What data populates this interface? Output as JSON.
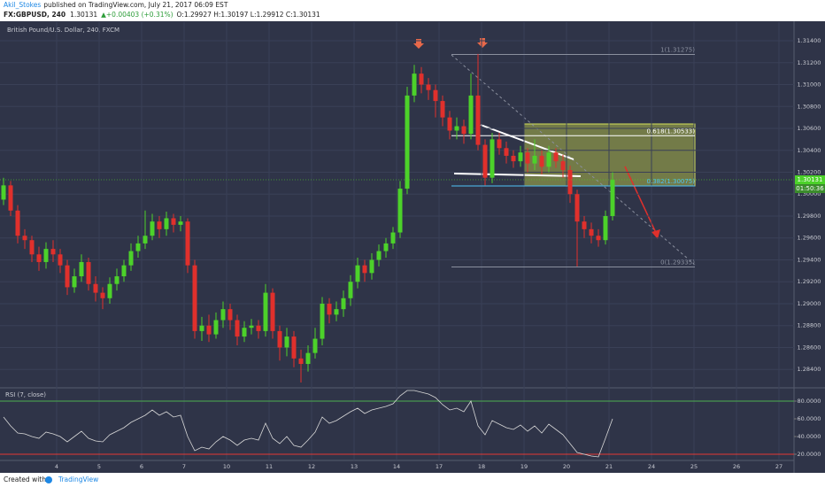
{
  "header": {
    "author": "Akil_Stokes",
    "published": "published on TradingView.com, July 21, 2017 06:09 EST",
    "symbol": "FX:GBPUSD, 240",
    "quote": "1.30131",
    "change": "▲+0.00403 (+0.31%)",
    "ohlc": "O:1.29927 H:1.30197 L:1.29912 C:1.30131"
  },
  "footer": {
    "created": "Created with",
    "brand": "TradingView"
  },
  "chart_data": [
    {
      "type": "candlestick",
      "title": "British Pound/U.S. Dollar, 240, FXCM",
      "up_color": "#4cd22a",
      "down_color": "#e0302c",
      "grid": true,
      "categories": [
        null,
        null,
        null,
        null,
        null,
        null,
        null,
        null,
        "4",
        null,
        null,
        null,
        null,
        null,
        "5",
        null,
        null,
        null,
        null,
        null,
        "6",
        null,
        null,
        null,
        null,
        null,
        "7",
        null,
        null,
        null,
        null,
        null,
        "10",
        null,
        null,
        null,
        null,
        null,
        "11",
        null,
        null,
        null,
        null,
        null,
        "12",
        null,
        null,
        null,
        null,
        null,
        "13",
        null,
        null,
        null,
        null,
        null,
        "14",
        null,
        null,
        null,
        null,
        null,
        "17",
        null,
        null,
        null,
        null,
        null,
        "18",
        null,
        null,
        null,
        null,
        null,
        "19",
        null,
        null,
        null,
        null,
        null,
        "20",
        null,
        null,
        null,
        null,
        null,
        "21",
        null,
        null,
        null,
        null,
        null,
        "24",
        null,
        null,
        null,
        null,
        null,
        "25",
        null,
        null,
        null,
        null,
        null,
        "26",
        null,
        null,
        null,
        null,
        null,
        "27",
        null
      ],
      "open": [
        1.2995,
        1.3008,
        1.2985,
        1.2962,
        1.2958,
        1.2945,
        1.2938,
        1.295,
        1.2945,
        1.2935,
        1.2915,
        1.2925,
        1.2938,
        1.2918,
        1.291,
        1.2905,
        1.2918,
        1.2925,
        1.2935,
        1.2948,
        1.2955,
        1.2962,
        1.2975,
        1.2968,
        1.2978,
        1.2972,
        1.2975,
        1.2935,
        1.2875,
        1.288,
        1.2872,
        1.2885,
        1.2895,
        1.2885,
        1.287,
        1.2878,
        1.288,
        1.2875,
        1.291,
        1.2875,
        1.286,
        1.287,
        1.285,
        1.2845,
        1.2855,
        1.2868,
        1.29,
        1.289,
        1.2895,
        1.2905,
        1.292,
        1.2935,
        1.2928,
        1.294,
        1.2948,
        1.2955,
        1.2965,
        1.3005,
        1.309,
        1.311,
        1.31,
        1.3095,
        1.3085,
        1.307,
        1.3058,
        1.3062,
        1.3055,
        1.309,
        1.3045,
        1.3015,
        1.305,
        1.3042,
        1.3035,
        1.303,
        1.3038,
        1.3028,
        1.3035,
        1.3025,
        1.3038,
        1.303,
        1.3022,
        1.3,
        1.2975,
        1.2968,
        1.2962,
        1.2958,
        1.298,
        null,
        null,
        null,
        null,
        null,
        null,
        null,
        null,
        null,
        null,
        null,
        null,
        null,
        null,
        null,
        null,
        null,
        null,
        null,
        null,
        null,
        null,
        null,
        null,
        null
      ],
      "high": [
        1.3015,
        1.3012,
        1.299,
        1.2968,
        1.2962,
        1.2952,
        1.2956,
        1.2958,
        1.295,
        1.294,
        1.2932,
        1.2945,
        1.2942,
        1.2925,
        1.2915,
        1.2924,
        1.2932,
        1.294,
        1.2955,
        1.2962,
        1.2985,
        1.2982,
        1.298,
        1.2984,
        1.2982,
        1.298,
        1.2978,
        1.294,
        1.2888,
        1.289,
        1.2892,
        1.2902,
        1.29,
        1.289,
        1.2884,
        1.2886,
        1.2885,
        1.2918,
        1.2914,
        1.288,
        1.2878,
        1.2875,
        1.2858,
        1.2862,
        1.2878,
        1.2906,
        1.2905,
        1.2902,
        1.2912,
        1.2926,
        1.2942,
        1.294,
        1.2946,
        1.2954,
        1.296,
        1.297,
        1.3012,
        1.3098,
        1.3118,
        1.3116,
        1.3106,
        1.31,
        1.309,
        1.3076,
        1.307,
        1.3068,
        1.311,
        1.3128,
        1.305,
        1.3056,
        1.3056,
        1.3048,
        1.304,
        1.3044,
        1.3042,
        1.305,
        1.304,
        1.3044,
        1.3042,
        1.3036,
        1.3026,
        1.3004,
        1.298,
        1.2974,
        1.2968,
        1.2985,
        1.302,
        null,
        null,
        null,
        null,
        null,
        null,
        null,
        null,
        null,
        null,
        null,
        null,
        null,
        null,
        null,
        null,
        null,
        null,
        null,
        null,
        null,
        null,
        null,
        null,
        null
      ],
      "low": [
        1.299,
        1.298,
        1.2955,
        1.295,
        1.2938,
        1.293,
        1.2932,
        1.2938,
        1.2928,
        1.2908,
        1.291,
        1.292,
        1.2912,
        1.2902,
        1.2895,
        1.29,
        1.2912,
        1.292,
        1.293,
        1.2942,
        1.295,
        1.2958,
        1.296,
        1.2962,
        1.2965,
        1.2966,
        1.2928,
        1.2868,
        1.2866,
        1.2865,
        1.2868,
        1.2878,
        1.2876,
        1.2862,
        1.2865,
        1.2872,
        1.2868,
        1.287,
        1.2868,
        1.2848,
        1.2852,
        1.2842,
        1.2828,
        1.2838,
        1.285,
        1.2862,
        1.2882,
        1.2884,
        1.2888,
        1.2898,
        1.2914,
        1.292,
        1.2922,
        1.2934,
        1.2942,
        1.295,
        1.296,
        1.3,
        1.3084,
        1.3092,
        1.3086,
        1.307,
        1.3062,
        1.305,
        1.305,
        1.3046,
        1.305,
        1.304,
        1.3008,
        1.301,
        1.3036,
        1.3028,
        1.3024,
        1.3025,
        1.302,
        1.3022,
        1.3018,
        1.302,
        1.3024,
        1.3015,
        1.2992,
        1.2934,
        1.296,
        1.2955,
        1.2952,
        1.2954,
        1.2976,
        null,
        null,
        null,
        null,
        null,
        null,
        null,
        null,
        null,
        null,
        null,
        null,
        null,
        null,
        null,
        null,
        null,
        null,
        null,
        null,
        null,
        null,
        null,
        null,
        null
      ],
      "close": [
        1.3008,
        1.2985,
        1.2962,
        1.2958,
        1.2945,
        1.2938,
        1.295,
        1.2945,
        1.2935,
        1.2915,
        1.2925,
        1.2938,
        1.2918,
        1.291,
        1.2905,
        1.2918,
        1.2925,
        1.2935,
        1.2948,
        1.2955,
        1.2962,
        1.2975,
        1.2968,
        1.2978,
        1.2972,
        1.2975,
        1.2935,
        1.2875,
        1.288,
        1.2872,
        1.2885,
        1.2895,
        1.2885,
        1.287,
        1.2878,
        1.288,
        1.2875,
        1.291,
        1.2875,
        1.286,
        1.287,
        1.285,
        1.2845,
        1.2855,
        1.2868,
        1.29,
        1.289,
        1.2895,
        1.2905,
        1.292,
        1.2935,
        1.2928,
        1.294,
        1.2948,
        1.2955,
        1.2965,
        1.3005,
        1.309,
        1.311,
        1.31,
        1.3095,
        1.3085,
        1.307,
        1.3058,
        1.3062,
        1.3055,
        1.309,
        1.3045,
        1.3015,
        1.305,
        1.3042,
        1.3035,
        1.303,
        1.3038,
        1.3028,
        1.3035,
        1.3025,
        1.3038,
        1.303,
        1.3022,
        1.3,
        1.2975,
        1.2968,
        1.2962,
        1.2958,
        1.298,
        1.3013,
        null,
        null,
        null,
        null,
        null,
        null,
        null,
        null,
        null,
        null,
        null,
        null,
        null,
        null,
        null,
        null,
        null,
        null,
        null,
        null,
        null,
        null,
        null,
        null,
        null
      ],
      "ylim": [
        1.2824,
        1.3157
      ],
      "yticks": [
        {
          "value": 1.314,
          "label": "1.31400"
        },
        {
          "value": 1.312,
          "label": "1.31200"
        },
        {
          "value": 1.31,
          "label": "1.31000"
        },
        {
          "value": 1.308,
          "label": "1.30800"
        },
        {
          "value": 1.306,
          "label": "1.30600"
        },
        {
          "value": 1.304,
          "label": "1.30400"
        },
        {
          "value": 1.302,
          "label": "1.30200"
        },
        {
          "value": 1.3,
          "label": "1.30000"
        },
        {
          "value": 1.298,
          "label": "1.29800"
        },
        {
          "value": 1.296,
          "label": "1.29600"
        },
        {
          "value": 1.294,
          "label": "1.29400"
        },
        {
          "value": 1.292,
          "label": "1.29200"
        },
        {
          "value": 1.29,
          "label": "1.29000"
        },
        {
          "value": 1.288,
          "label": "1.28800"
        },
        {
          "value": 1.286,
          "label": "1.28600"
        },
        {
          "value": 1.284,
          "label": "1.28400"
        }
      ],
      "last_price": {
        "value": 1.30131,
        "label": "1.30131"
      },
      "countdown": "01:50:36",
      "fib": [
        {
          "price": 1.31275,
          "label": "1(1.31275)",
          "color": "#8a8f9e"
        },
        {
          "price": 1.30533,
          "label": "0.618(1.30533)",
          "color": "#ffffff"
        },
        {
          "price": 1.30075,
          "label": "0.382(1.30075)",
          "color": "#4fc3f7"
        },
        {
          "price": 1.29335,
          "label": "0(1.29335)",
          "color": "#8a8f9e"
        }
      ]
    },
    {
      "type": "line",
      "title": "RSI (7, close)",
      "color": "#d8d8d8",
      "values": [
        62,
        52,
        44,
        43,
        40,
        38,
        45,
        43,
        40,
        34,
        40,
        46,
        38,
        35,
        34,
        42,
        46,
        50,
        56,
        60,
        64,
        70,
        64,
        68,
        62,
        64,
        40,
        24,
        28,
        26,
        34,
        40,
        36,
        30,
        36,
        38,
        36,
        55,
        38,
        32,
        40,
        30,
        28,
        36,
        45,
        62,
        55,
        58,
        63,
        68,
        72,
        66,
        70,
        72,
        74,
        77,
        86,
        92,
        92,
        90,
        88,
        84,
        76,
        70,
        72,
        68,
        80,
        52,
        42,
        58,
        54,
        50,
        48,
        53,
        46,
        52,
        44,
        54,
        48,
        42,
        32,
        22,
        20,
        18,
        17,
        38,
        60,
        null,
        null,
        null,
        null,
        null,
        null,
        null,
        null,
        null,
        null,
        null,
        null,
        null,
        null,
        null,
        null,
        null,
        null,
        null,
        null,
        null,
        null,
        null,
        null,
        null
      ],
      "ylim": [
        13,
        93
      ],
      "yticks": [
        {
          "value": 80,
          "label": "80.0000"
        },
        {
          "value": 60,
          "label": "60.0000"
        },
        {
          "value": 40,
          "label": "40.0000"
        },
        {
          "value": 20,
          "label": "20.0000"
        }
      ],
      "upper_band": 80,
      "lower_band": 20,
      "upper_color": "#4caf50",
      "lower_color": "#e53935"
    }
  ]
}
